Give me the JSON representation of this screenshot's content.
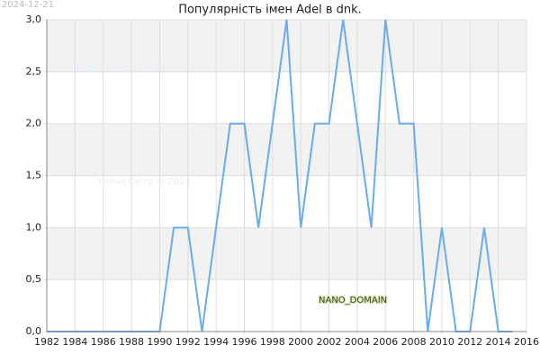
{
  "chart_data": {
    "type": "line",
    "title": "Популярність імен Adel в dnk.",
    "date": "2024-12-21",
    "watermarks": [
      "Імена Світу © 2024",
      "Імена Світу © 2024",
      "Імена Світу © 2024"
    ],
    "badge": "NANO_DOMAIN",
    "x": [
      1982,
      1983,
      1984,
      1985,
      1986,
      1987,
      1988,
      1989,
      1990,
      1991,
      1992,
      1993,
      1994,
      1995,
      1996,
      1997,
      1998,
      1999,
      2000,
      2001,
      2002,
      2003,
      2004,
      2005,
      2006,
      2007,
      2008,
      2009,
      2010,
      2011,
      2012,
      2013,
      2014,
      2015
    ],
    "series": [
      {
        "name": "Adel",
        "color": "#6aaaf0",
        "values": [
          0,
          0,
          0,
          0,
          0,
          0,
          0,
          0,
          0,
          1,
          1,
          0,
          1,
          2,
          2,
          1,
          2,
          3,
          1,
          2,
          2,
          3,
          2,
          1,
          3,
          2,
          2,
          0,
          1,
          0,
          0,
          1,
          0,
          0
        ]
      }
    ],
    "xlim": [
      1982,
      2016
    ],
    "xticks": [
      1982,
      1984,
      1986,
      1988,
      1990,
      1992,
      1994,
      1996,
      1998,
      2000,
      2002,
      2004,
      2006,
      2008,
      2010,
      2012,
      2014,
      2016
    ],
    "ylim": [
      0,
      3
    ],
    "yticks": [
      {
        "value": 0,
        "label": "0,0"
      },
      {
        "value": 0.5,
        "label": "0,5"
      },
      {
        "value": 1,
        "label": "1,0"
      },
      {
        "value": 1.5,
        "label": "1,5"
      },
      {
        "value": 2,
        "label": "2,0"
      },
      {
        "value": 2.5,
        "label": "2,5"
      },
      {
        "value": 3,
        "label": "3,0"
      }
    ],
    "grid": true
  }
}
